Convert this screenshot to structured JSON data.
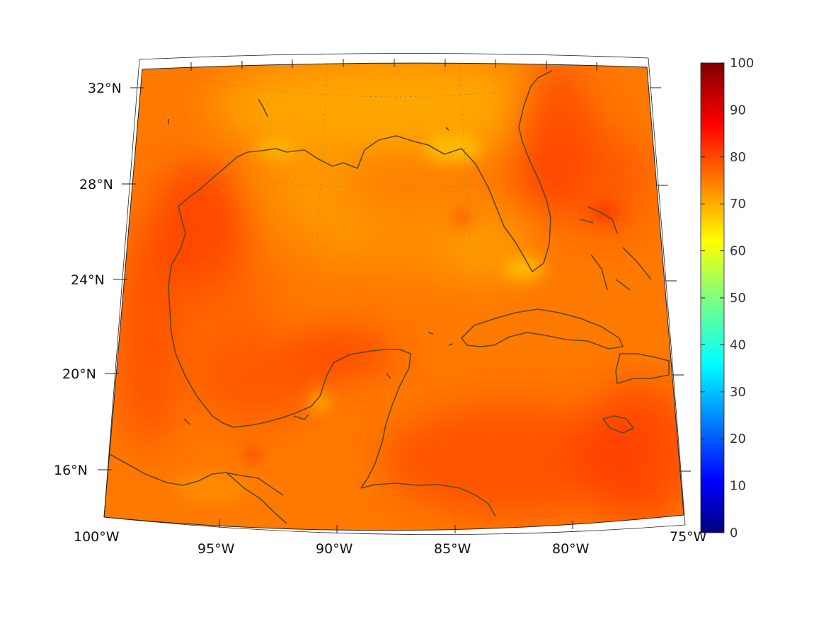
{
  "map": {
    "projection": "conic",
    "extent": {
      "lon": [
        -100,
        -75
      ],
      "lat": [
        14,
        33
      ]
    },
    "lat_ticks": [
      {
        "value": 32,
        "label": "32°N"
      },
      {
        "value": 28,
        "label": "28°N"
      },
      {
        "value": 24,
        "label": "24°N"
      },
      {
        "value": 20,
        "label": "20°N"
      },
      {
        "value": 16,
        "label": "16°N"
      }
    ],
    "lon_ticks": [
      {
        "value": -100,
        "label": "100°W"
      },
      {
        "value": -95,
        "label": "95°W"
      },
      {
        "value": -90,
        "label": "90°W"
      },
      {
        "value": -85,
        "label": "85°W"
      },
      {
        "value": -80,
        "label": "80°W"
      },
      {
        "value": -75,
        "label": "75°W"
      }
    ],
    "grid": true,
    "coastline_color": "#5b4a1e",
    "field_colors": {
      "dominant": "#ff7a00",
      "high": "#ff3a00",
      "low": "#ffc000"
    }
  },
  "colorbar": {
    "min": 0,
    "max": 100,
    "colormap": "jet",
    "placement": "right",
    "ticks": [
      "0",
      "10",
      "20",
      "30",
      "40",
      "50",
      "60",
      "70",
      "80",
      "90",
      "100"
    ]
  }
}
